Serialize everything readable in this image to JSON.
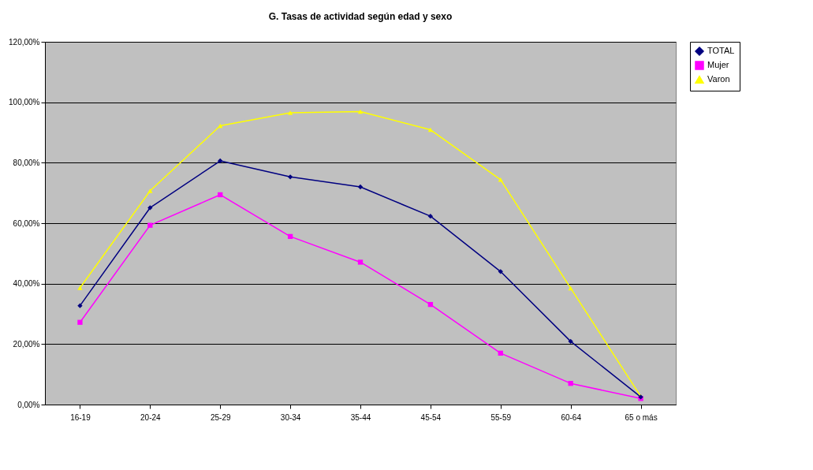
{
  "chart_data": {
    "type": "line",
    "title": "G. Tasas de actividad según edad y sexo",
    "categories": [
      "16-19",
      "20-24",
      "25-29",
      "30-34",
      "35-44",
      "45-54",
      "55-59",
      "60-64",
      "65 o más"
    ],
    "series": [
      {
        "name": "TOTAL",
        "color": "#000080",
        "marker": "diamond",
        "values": [
          32.7,
          65.1,
          80.6,
          75.3,
          72.0,
          62.3,
          44.0,
          20.9,
          2.5
        ]
      },
      {
        "name": "Mujer",
        "color": "#ff00ff",
        "marker": "square",
        "values": [
          27.2,
          59.3,
          69.4,
          55.6,
          47.1,
          33.1,
          17.0,
          7.0,
          2.0
        ]
      },
      {
        "name": "Varon",
        "color": "#ffff00",
        "marker": "triangle",
        "values": [
          38.6,
          70.7,
          92.2,
          96.5,
          96.9,
          90.9,
          74.4,
          38.5,
          2.7
        ]
      }
    ],
    "ylim": [
      0,
      120
    ],
    "yticks": [
      {
        "value": 0,
        "label": "0,00%"
      },
      {
        "value": 20,
        "label": "20,00%"
      },
      {
        "value": 40,
        "label": "40,00%"
      },
      {
        "value": 60,
        "label": "60,00%"
      },
      {
        "value": 80,
        "label": "80,00%"
      },
      {
        "value": 100,
        "label": "100,00%"
      },
      {
        "value": 120,
        "label": "120,00%"
      }
    ],
    "grid": "y",
    "legend": "right",
    "line_style": "solid"
  }
}
